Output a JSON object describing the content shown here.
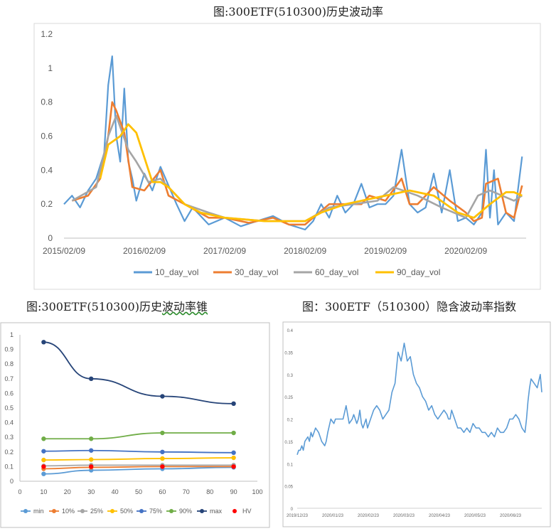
{
  "titles": {
    "chart1": "图:300ETF(510300)历史波动率",
    "chart2_prefix": "图:300ETF(510300)历史",
    "chart2_underlined": "波动率锥",
    "chart3": "图：300ETF（510300）隐含波动率指数"
  },
  "chart_data": [
    {
      "type": "line",
      "title": "图:300ETF(510300)历史波动率",
      "x_ticks": [
        "2015/02/09",
        "2016/02/09",
        "2017/02/09",
        "2018/02/09",
        "2019/02/09",
        "2020/02/09"
      ],
      "y_ticks": [
        "0",
        "0.2",
        "0.4",
        "0.6",
        "0.8",
        "1",
        "1.2"
      ],
      "ylim": [
        0,
        1.2
      ],
      "grid": false,
      "legend_position": "bottom",
      "series": [
        {
          "name": "10_day_vol",
          "color": "#5b9bd5",
          "x": [
            0,
            0.1,
            0.2,
            0.3,
            0.4,
            0.5,
            0.55,
            0.6,
            0.65,
            0.7,
            0.75,
            0.8,
            0.85,
            0.9,
            1,
            1.1,
            1.2,
            1.4,
            1.5,
            1.6,
            1.8,
            2,
            2.2,
            2.4,
            2.6,
            2.8,
            3,
            3.1,
            3.2,
            3.3,
            3.4,
            3.5,
            3.6,
            3.7,
            3.8,
            3.9,
            4,
            4.1,
            4.2,
            4.3,
            4.4,
            4.5,
            4.6,
            4.7,
            4.8,
            4.9,
            5,
            5.1,
            5.2,
            5.25,
            5.3,
            5.35,
            5.4,
            5.5,
            5.6,
            5.7
          ],
          "values": [
            0.2,
            0.25,
            0.18,
            0.28,
            0.35,
            0.5,
            0.9,
            1.07,
            0.6,
            0.45,
            0.88,
            0.45,
            0.35,
            0.22,
            0.38,
            0.28,
            0.42,
            0.2,
            0.1,
            0.18,
            0.08,
            0.12,
            0.07,
            0.1,
            0.13,
            0.08,
            0.05,
            0.1,
            0.2,
            0.12,
            0.25,
            0.15,
            0.2,
            0.32,
            0.18,
            0.2,
            0.2,
            0.25,
            0.52,
            0.2,
            0.15,
            0.18,
            0.38,
            0.15,
            0.4,
            0.1,
            0.12,
            0.08,
            0.15,
            0.52,
            0.12,
            0.4,
            0.08,
            0.15,
            0.1,
            0.48
          ]
        },
        {
          "name": "30_day_vol",
          "color": "#ed7d31",
          "x": [
            0.1,
            0.3,
            0.45,
            0.55,
            0.6,
            0.65,
            0.75,
            0.85,
            1,
            1.2,
            1.3,
            1.5,
            1.8,
            2,
            2.3,
            2.6,
            2.8,
            3,
            3.1,
            3.3,
            3.5,
            3.7,
            3.8,
            4,
            4.2,
            4.3,
            4.4,
            4.6,
            4.8,
            5,
            5.1,
            5.2,
            5.25,
            5.4,
            5.5,
            5.6,
            5.7
          ],
          "values": [
            0.22,
            0.25,
            0.35,
            0.6,
            0.8,
            0.75,
            0.62,
            0.3,
            0.28,
            0.4,
            0.25,
            0.2,
            0.12,
            0.12,
            0.09,
            0.12,
            0.08,
            0.08,
            0.12,
            0.2,
            0.2,
            0.2,
            0.25,
            0.22,
            0.35,
            0.2,
            0.2,
            0.3,
            0.22,
            0.15,
            0.1,
            0.12,
            0.32,
            0.35,
            0.15,
            0.12,
            0.31
          ]
        },
        {
          "name": "60_day_vol",
          "color": "#a5a5a5",
          "x": [
            0.1,
            0.4,
            0.55,
            0.65,
            0.8,
            0.9,
            1.05,
            1.2,
            1.5,
            1.8,
            2,
            2.5,
            3,
            3.3,
            3.6,
            3.9,
            4.1,
            4.4,
            4.7,
            5,
            5.15,
            5.3,
            5.45,
            5.6,
            5.7
          ],
          "values": [
            0.22,
            0.3,
            0.6,
            0.72,
            0.52,
            0.45,
            0.33,
            0.35,
            0.2,
            0.15,
            0.12,
            0.1,
            0.1,
            0.18,
            0.2,
            0.22,
            0.3,
            0.25,
            0.18,
            0.12,
            0.25,
            0.28,
            0.25,
            0.22,
            0.25
          ]
        },
        {
          "name": "90_day_vol",
          "color": "#ffc000",
          "x": [
            0.45,
            0.55,
            0.7,
            0.8,
            0.9,
            1.1,
            1.2,
            1.3,
            1.5,
            1.7,
            2,
            2.5,
            3,
            3.2,
            3.5,
            4,
            4.3,
            4.6,
            4.9,
            5.1,
            5.3,
            5.5,
            5.6,
            5.7
          ],
          "values": [
            0.35,
            0.55,
            0.6,
            0.67,
            0.62,
            0.33,
            0.33,
            0.3,
            0.2,
            0.15,
            0.12,
            0.1,
            0.1,
            0.15,
            0.2,
            0.25,
            0.28,
            0.25,
            0.15,
            0.12,
            0.2,
            0.27,
            0.27,
            0.25
          ]
        }
      ],
      "legend": [
        "10_day_vol",
        "30_day_vol",
        "60_day_vol",
        "90_day_vol"
      ]
    },
    {
      "type": "line",
      "title": "图:300ETF(510300)历史波动率锥",
      "x_ticks": [
        "0",
        "10",
        "20",
        "30",
        "40",
        "50",
        "60",
        "70",
        "80",
        "90",
        "100"
      ],
      "y_ticks": [
        "0",
        "0.1",
        "0.2",
        "0.3",
        "0.4",
        "0.5",
        "0.6",
        "0.7",
        "0.8",
        "0.9",
        "1"
      ],
      "xlim": [
        0,
        100
      ],
      "ylim": [
        0,
        1
      ],
      "x": [
        10,
        30,
        60,
        90
      ],
      "grid": false,
      "legend_position": "bottom",
      "series": [
        {
          "name": "min",
          "color": "#5b9bd5",
          "values": [
            0.05,
            0.075,
            0.085,
            0.095
          ]
        },
        {
          "name": "10%",
          "color": "#ed7d31",
          "values": [
            0.085,
            0.095,
            0.1,
            0.1
          ]
        },
        {
          "name": "25%",
          "color": "#a5a5a5",
          "values": [
            0.105,
            0.11,
            0.11,
            0.11
          ]
        },
        {
          "name": "50%",
          "color": "#ffc000",
          "values": [
            0.145,
            0.148,
            0.155,
            0.16
          ]
        },
        {
          "name": "75%",
          "color": "#4472c4",
          "values": [
            0.205,
            0.21,
            0.2,
            0.195
          ]
        },
        {
          "name": "90%",
          "color": "#70ad47",
          "values": [
            0.29,
            0.29,
            0.33,
            0.33
          ]
        },
        {
          "name": "max",
          "color": "#264478",
          "values": [
            0.95,
            0.7,
            0.58,
            0.53
          ]
        },
        {
          "name": "HV",
          "color": "#ff0000",
          "values": [
            0.1,
            0.1,
            0.1,
            0.1
          ],
          "markers_only": true
        }
      ]
    },
    {
      "type": "line",
      "title": "图：300ETF（510300）隐含波动率指数",
      "x_ticks": [
        "2019/12/23",
        "2020/01/23",
        "2020/02/23",
        "2020/03/23",
        "2020/04/23",
        "2020/05/23",
        "2020/06/23"
      ],
      "y_ticks": [
        "0",
        "0.05",
        "0.1",
        "0.15",
        "0.2",
        "0.25",
        "0.3",
        "0.35",
        "0.4"
      ],
      "ylim": [
        0,
        0.4
      ],
      "grid": false,
      "series": [
        {
          "name": "",
          "color": "#5b9bd5",
          "x": [
            0,
            1,
            2,
            3,
            4,
            5,
            7,
            8,
            9,
            10,
            12,
            14,
            15,
            16,
            18,
            19,
            20,
            22,
            24,
            25,
            27,
            30,
            32,
            34,
            36,
            37,
            38,
            39,
            40,
            41,
            42,
            43,
            45,
            46,
            48,
            50,
            52,
            54,
            56,
            58,
            60,
            62,
            64,
            66,
            68,
            70,
            72,
            74,
            76,
            78,
            80,
            82,
            84,
            86,
            88,
            90,
            92,
            94,
            96,
            98,
            99,
            100,
            101,
            102,
            103,
            104,
            105,
            107,
            109,
            111,
            113,
            115,
            117,
            119,
            121,
            123,
            125,
            127,
            129,
            131,
            133,
            135,
            137,
            139,
            141,
            143,
            145,
            147,
            149,
            150,
            151,
            152,
            153,
            155,
            157,
            159,
            160
          ],
          "values": [
            0.12,
            0.13,
            0.13,
            0.14,
            0.13,
            0.15,
            0.16,
            0.15,
            0.17,
            0.16,
            0.18,
            0.17,
            0.16,
            0.15,
            0.14,
            0.15,
            0.17,
            0.2,
            0.19,
            0.2,
            0.2,
            0.2,
            0.23,
            0.19,
            0.2,
            0.21,
            0.2,
            0.19,
            0.2,
            0.22,
            0.19,
            0.18,
            0.2,
            0.18,
            0.2,
            0.22,
            0.23,
            0.22,
            0.2,
            0.21,
            0.22,
            0.26,
            0.28,
            0.35,
            0.33,
            0.37,
            0.33,
            0.34,
            0.3,
            0.28,
            0.27,
            0.25,
            0.24,
            0.22,
            0.23,
            0.21,
            0.2,
            0.21,
            0.22,
            0.21,
            0.2,
            0.2,
            0.22,
            0.21,
            0.2,
            0.19,
            0.18,
            0.18,
            0.17,
            0.18,
            0.17,
            0.19,
            0.18,
            0.18,
            0.17,
            0.17,
            0.16,
            0.17,
            0.16,
            0.18,
            0.17,
            0.17,
            0.18,
            0.2,
            0.2,
            0.21,
            0.2,
            0.18,
            0.17,
            0.2,
            0.24,
            0.27,
            0.29,
            0.28,
            0.27,
            0.3,
            0.26
          ]
        }
      ]
    }
  ]
}
